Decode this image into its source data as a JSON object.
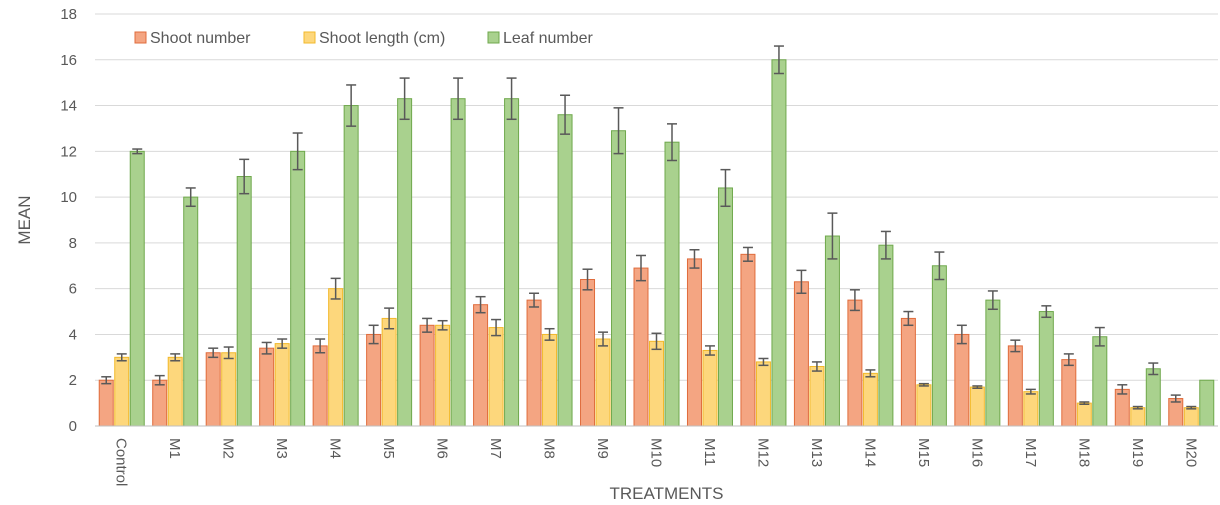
{
  "chart_data": {
    "type": "bar",
    "xlabel": "TREATMENTS",
    "ylabel": "MEAN",
    "ylim": [
      0,
      18
    ],
    "yticks": [
      0,
      2,
      4,
      6,
      8,
      10,
      12,
      14,
      16,
      18
    ],
    "grid": true,
    "legend": "top-left",
    "categories": [
      "Control",
      "M1",
      "M2",
      "M3",
      "M4",
      "M5",
      "M6",
      "M7",
      "M8",
      "M9",
      "M10",
      "M11",
      "M12",
      "M13",
      "M14",
      "M15",
      "M16",
      "M17",
      "M18",
      "M19",
      "M20"
    ],
    "series": [
      {
        "name": "Shoot number",
        "color": "#F4A582",
        "stroke": "#E06C3C",
        "values": [
          2.0,
          2.0,
          3.2,
          3.4,
          3.5,
          4.0,
          4.4,
          5.3,
          5.5,
          6.4,
          6.9,
          7.3,
          7.5,
          6.3,
          5.5,
          4.7,
          4.0,
          3.5,
          2.9,
          1.6,
          1.2
        ],
        "errors": [
          0.15,
          0.2,
          0.2,
          0.25,
          0.3,
          0.4,
          0.3,
          0.35,
          0.3,
          0.45,
          0.55,
          0.4,
          0.3,
          0.5,
          0.45,
          0.3,
          0.4,
          0.25,
          0.25,
          0.2,
          0.15
        ]
      },
      {
        "name": "Shoot length (cm)",
        "color": "#FDD77C",
        "stroke": "#F2B92B",
        "values": [
          3.0,
          3.0,
          3.2,
          3.6,
          6.0,
          4.7,
          4.4,
          4.3,
          4.0,
          3.8,
          3.7,
          3.3,
          2.8,
          2.6,
          2.3,
          1.8,
          1.7,
          1.5,
          1.0,
          0.8,
          0.8
        ],
        "errors": [
          0.15,
          0.15,
          0.25,
          0.2,
          0.45,
          0.45,
          0.2,
          0.35,
          0.25,
          0.3,
          0.35,
          0.2,
          0.15,
          0.2,
          0.15,
          0.05,
          0.05,
          0.1,
          0.05,
          0.05,
          0.05
        ]
      },
      {
        "name": "Leaf number",
        "color": "#A9D18E",
        "stroke": "#6FA84C",
        "values": [
          12.0,
          10.0,
          10.9,
          12.0,
          14.0,
          14.3,
          14.3,
          14.3,
          13.6,
          12.9,
          12.4,
          10.4,
          16.0,
          8.3,
          7.9,
          7.0,
          5.5,
          5.0,
          3.9,
          2.5,
          2.0
        ],
        "errors": [
          0.1,
          0.4,
          0.75,
          0.8,
          0.9,
          0.9,
          0.9,
          0.9,
          0.85,
          1.0,
          0.8,
          0.8,
          0.6,
          1.0,
          0.6,
          0.6,
          0.4,
          0.25,
          0.4,
          0.25,
          0.0
        ]
      }
    ]
  }
}
